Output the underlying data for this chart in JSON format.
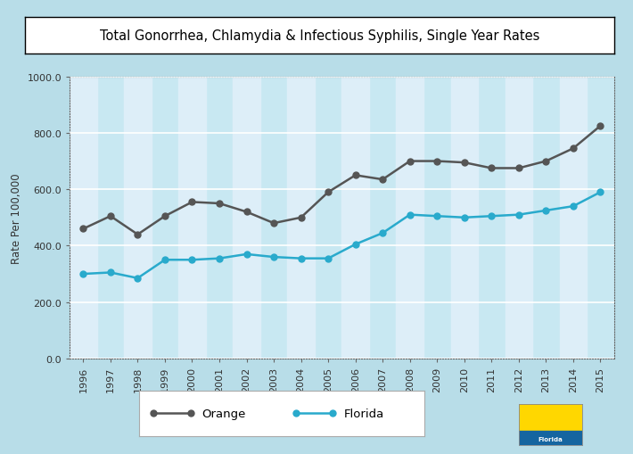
{
  "title": "Total Gonorrhea, Chlamydia & Infectious Syphilis, Single Year Rates",
  "ylabel": "Rate Per 100,000",
  "years": [
    1996,
    1997,
    1998,
    1999,
    2000,
    2001,
    2002,
    2003,
    2004,
    2005,
    2006,
    2007,
    2008,
    2009,
    2010,
    2011,
    2012,
    2013,
    2014,
    2015
  ],
  "orange_data": [
    460,
    505,
    440,
    505,
    555,
    550,
    520,
    480,
    500,
    590,
    650,
    635,
    700,
    700,
    695,
    675,
    675,
    700,
    745,
    825
  ],
  "florida_data": [
    300,
    305,
    285,
    350,
    350,
    355,
    370,
    360,
    355,
    355,
    405,
    445,
    510,
    505,
    500,
    505,
    510,
    525,
    540,
    590
  ],
  "orange_color": "#555555",
  "florida_color": "#29AACC",
  "bg_color_top": "#B8DDE8",
  "bg_color_bottom": "#E8F6FA",
  "plot_bg_color": "#C8E8F2",
  "stripe_color": "#DDEEF8",
  "grid_color": "#FFFFFF",
  "border_color": "#666666",
  "ylim": [
    0,
    1000
  ],
  "yticks": [
    0.0,
    200.0,
    400.0,
    600.0,
    800.0,
    1000.0
  ],
  "ytick_labels": [
    "0.0",
    "200.0",
    "400.0",
    "600.0",
    "800.0",
    "1000.0"
  ],
  "title_fontsize": 10.5,
  "axis_label_fontsize": 8.5,
  "tick_fontsize": 8,
  "legend_fontsize": 9.5,
  "marker": "o",
  "marker_size": 5,
  "line_width": 1.8
}
